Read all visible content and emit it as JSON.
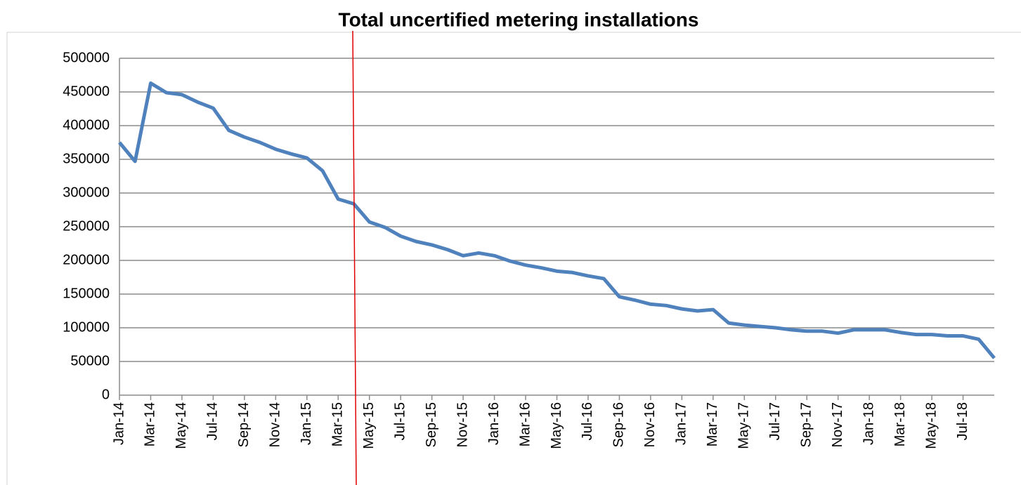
{
  "chart_data": {
    "type": "line",
    "title": "Total uncertified metering installations",
    "categories": [
      "Jan-14",
      null,
      "Mar-14",
      null,
      "May-14",
      null,
      "Jul-14",
      null,
      "Sep-14",
      null,
      "Nov-14",
      null,
      "Jan-15",
      null,
      "Mar-15",
      null,
      "May-15",
      null,
      "Jul-15",
      null,
      "Sep-15",
      null,
      "Nov-15",
      null,
      "Jan-16",
      null,
      "Mar-16",
      null,
      "May-16",
      null,
      "Jul-16",
      null,
      "Sep-16",
      null,
      "Nov-16",
      null,
      "Jan-17",
      null,
      "Mar-17",
      null,
      "May-17",
      null,
      "Jul-17",
      null,
      "Sep-17",
      null,
      "Nov-17",
      null,
      "Jan-18",
      null,
      "Mar-18",
      null,
      "May-18",
      null,
      "Jul-18",
      null,
      null
    ],
    "values": [
      375000,
      347000,
      463000,
      449000,
      446000,
      435000,
      426000,
      393000,
      383000,
      375000,
      365000,
      358000,
      352000,
      333000,
      291000,
      284000,
      257000,
      249000,
      236000,
      228000,
      223000,
      216000,
      207000,
      211000,
      207000,
      199000,
      193000,
      189000,
      184000,
      182000,
      177000,
      173000,
      146000,
      141000,
      135000,
      133000,
      128000,
      125000,
      127000,
      107000,
      104000,
      102000,
      100000,
      97000,
      95000,
      95000,
      92000,
      97000,
      97000,
      97000,
      93000,
      90000,
      90000,
      88000,
      88000,
      83000,
      55000
    ],
    "color": "#4f81bd",
    "ylim": [
      0,
      500000
    ],
    "yticks": [
      0,
      50000,
      100000,
      150000,
      200000,
      250000,
      300000,
      350000,
      400000,
      450000,
      500000
    ],
    "grid": true
  }
}
